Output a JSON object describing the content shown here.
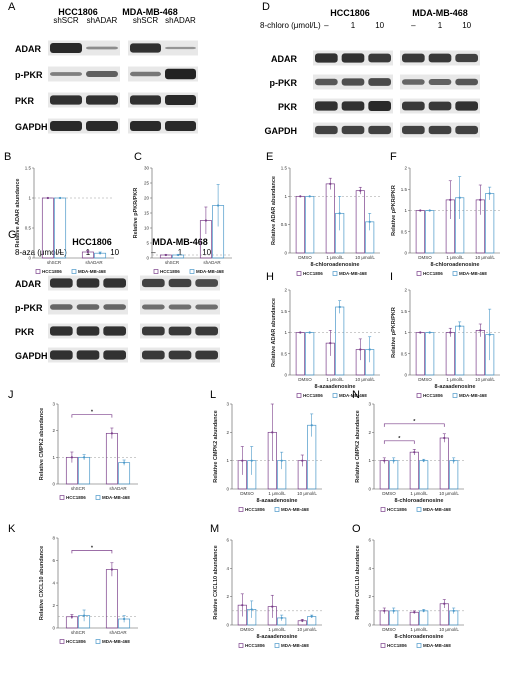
{
  "colors": {
    "hcc": "#7b3f8a",
    "mda": "#4a98c9",
    "ref": "#999999",
    "band": "#1a1a1a"
  },
  "blots": [
    {
      "letter": "A",
      "cell_lines": [
        "HCC1806",
        "MDA-MB-468"
      ],
      "lanes": [
        "shSCR",
        "shADAR",
        "shSCR",
        "shADAR"
      ],
      "rows": [
        {
          "name": "ADAR",
          "intensity": [
            0.9,
            0.25,
            0.85,
            0.2
          ]
        },
        {
          "name": "p-PKR",
          "intensity": [
            0.35,
            0.55,
            0.4,
            0.95
          ]
        },
        {
          "name": "PKR",
          "intensity": [
            0.85,
            0.85,
            0.85,
            0.9
          ]
        },
        {
          "name": "GAPDH",
          "intensity": [
            0.9,
            0.9,
            0.9,
            0.9
          ]
        }
      ]
    },
    {
      "letter": "D",
      "cell_lines": [
        "HCC1806",
        "MDA-MB-468"
      ],
      "dose_label": "8-chloro (μmol/L)",
      "lanes": [
        "–",
        "1",
        "10",
        "–",
        "1",
        "10"
      ],
      "rows": [
        {
          "name": "ADAR",
          "intensity": [
            0.85,
            0.85,
            0.8,
            0.8,
            0.8,
            0.75
          ]
        },
        {
          "name": "p-PKR",
          "intensity": [
            0.6,
            0.65,
            0.7,
            0.5,
            0.55,
            0.6
          ]
        },
        {
          "name": "PKR",
          "intensity": [
            0.85,
            0.85,
            0.9,
            0.8,
            0.8,
            0.85
          ]
        },
        {
          "name": "GAPDH",
          "intensity": [
            0.75,
            0.75,
            0.75,
            0.75,
            0.75,
            0.75
          ]
        }
      ]
    },
    {
      "letter": "G",
      "cell_lines": [
        "HCC1806",
        "MDA-MB-468"
      ],
      "dose_label": "8-aza (μmol/L)",
      "lanes": [
        "–",
        "1",
        "10",
        "–",
        "1",
        "10"
      ],
      "rows": [
        {
          "name": "ADAR",
          "intensity": [
            0.85,
            0.85,
            0.85,
            0.75,
            0.75,
            0.7
          ]
        },
        {
          "name": "p-PKR",
          "intensity": [
            0.5,
            0.5,
            0.5,
            0.45,
            0.45,
            0.45
          ]
        },
        {
          "name": "PKR",
          "intensity": [
            0.85,
            0.85,
            0.85,
            0.8,
            0.8,
            0.8
          ]
        },
        {
          "name": "GAPDH",
          "intensity": [
            0.85,
            0.85,
            0.85,
            0.8,
            0.8,
            0.8
          ]
        }
      ]
    }
  ],
  "legend": {
    "hcc": "HCC1806",
    "mda": "MDA-MB-468"
  },
  "chart_data": [
    {
      "letter": "B",
      "type": "bar",
      "ylabel": "Relative ADAR abundance",
      "xlabel": "",
      "categories": [
        "shSCR",
        "shADAR"
      ],
      "ylim": [
        0,
        1.5
      ],
      "yticks": [
        0,
        0.5,
        1.0,
        1.5
      ],
      "ref": 1,
      "series": [
        {
          "name": "HCC1806",
          "values": [
            1.0,
            0.1
          ],
          "err": [
            0,
            0.02
          ]
        },
        {
          "name": "MDA-MB-468",
          "values": [
            1.0,
            0.08
          ],
          "err": [
            0,
            0.02
          ]
        }
      ]
    },
    {
      "letter": "C",
      "type": "bar",
      "ylabel": "Relative pPKR/PKR",
      "xlabel": "",
      "categories": [
        "shSCR",
        "shADAR"
      ],
      "ylim": [
        0,
        30
      ],
      "yticks": [
        0,
        5,
        10,
        15,
        20,
        25,
        30
      ],
      "ref": 1,
      "series": [
        {
          "name": "HCC1806",
          "values": [
            1.0,
            12.5
          ],
          "err": [
            0.1,
            4.5
          ]
        },
        {
          "name": "MDA-MB-468",
          "values": [
            1.0,
            17.5
          ],
          "err": [
            0.1,
            7
          ]
        }
      ]
    },
    {
      "letter": "E",
      "type": "bar",
      "ylabel": "Relative ADAR abundance",
      "xlabel": "8-chloroadenosine",
      "categories": [
        "DMSO",
        "1 μmol/L",
        "10 μmol/L"
      ],
      "ylim": [
        0,
        1.5
      ],
      "yticks": [
        0,
        0.5,
        1.0,
        1.5
      ],
      "ref": 1,
      "series": [
        {
          "name": "HCC1806",
          "values": [
            1.0,
            1.22,
            1.1
          ],
          "err": [
            0,
            0.1,
            0.06
          ]
        },
        {
          "name": "MDA-MB-468",
          "values": [
            1.0,
            0.7,
            0.55
          ],
          "err": [
            0,
            0.3,
            0.15
          ]
        }
      ]
    },
    {
      "letter": "F",
      "type": "bar",
      "ylabel": "Relative pPKR/PKR",
      "xlabel": "8-chloroadenosine",
      "categories": [
        "DMSO",
        "1 μmol/L",
        "10 μmol/L"
      ],
      "ylim": [
        0,
        2.0
      ],
      "yticks": [
        0,
        0.5,
        1.0,
        1.5,
        2.0
      ],
      "ref": 1,
      "series": [
        {
          "name": "HCC1806",
          "values": [
            1.0,
            1.25,
            1.25
          ],
          "err": [
            0,
            0.45,
            0.35
          ]
        },
        {
          "name": "MDA-MB-468",
          "values": [
            1.0,
            1.3,
            1.4
          ],
          "err": [
            0,
            0.5,
            0.15
          ]
        }
      ]
    },
    {
      "letter": "H",
      "type": "bar",
      "ylabel": "Relative ADAR abundance",
      "xlabel": "8-azaadenosine",
      "categories": [
        "DMSO",
        "1 μmol/L",
        "10 μmol/L"
      ],
      "ylim": [
        0,
        2.0
      ],
      "yticks": [
        0,
        0.5,
        1.0,
        1.5,
        2.0
      ],
      "ref": 1,
      "series": [
        {
          "name": "HCC1806",
          "values": [
            1.0,
            0.75,
            0.6
          ],
          "err": [
            0,
            0.3,
            0.25
          ]
        },
        {
          "name": "MDA-MB-468",
          "values": [
            1.0,
            1.6,
            0.6
          ],
          "err": [
            0,
            0.15,
            0.3
          ]
        }
      ]
    },
    {
      "letter": "I",
      "type": "bar",
      "ylabel": "Relative pPKR/PKR",
      "xlabel": "8-azaadenosine",
      "categories": [
        "DMSO",
        "1 μmol/L",
        "10 μmol/L"
      ],
      "ylim": [
        0,
        2.0
      ],
      "yticks": [
        0,
        0.5,
        1.0,
        1.5,
        2.0
      ],
      "ref": 1,
      "series": [
        {
          "name": "HCC1806",
          "values": [
            1.0,
            1.0,
            1.05
          ],
          "err": [
            0,
            0.1,
            0.15
          ]
        },
        {
          "name": "MDA-MB-468",
          "values": [
            1.0,
            1.15,
            0.95
          ],
          "err": [
            0,
            0.1,
            0.6
          ]
        }
      ]
    },
    {
      "letter": "J",
      "type": "bar",
      "ylabel": "Relative CMPK2 abundance",
      "xlabel": "",
      "categories": [
        "shSCR",
        "shADAR"
      ],
      "ylim": [
        0,
        3
      ],
      "yticks": [
        0,
        1,
        2,
        3
      ],
      "ref": 1,
      "series": [
        {
          "name": "HCC1806",
          "values": [
            1.0,
            1.9
          ],
          "err": [
            0.2,
            0.2
          ]
        },
        {
          "name": "MDA-MB-468",
          "values": [
            1.0,
            0.8
          ],
          "err": [
            0.1,
            0.1
          ]
        }
      ],
      "sig": [
        {
          "from": [
            0,
            0
          ],
          "to": [
            1,
            0
          ],
          "label": "*",
          "y": 2.6
        }
      ]
    },
    {
      "letter": "L",
      "type": "bar",
      "ylabel": "Relative CMPK2 abundance",
      "xlabel": "8-azaadenosine",
      "categories": [
        "DMSO",
        "1 μmol/L",
        "10 μmol/L"
      ],
      "ylim": [
        0,
        3
      ],
      "yticks": [
        0,
        1,
        2,
        3
      ],
      "ref": 1,
      "series": [
        {
          "name": "HCC1806",
          "values": [
            1.0,
            2.0,
            1.0
          ],
          "err": [
            0.5,
            1.0,
            0.2
          ]
        },
        {
          "name": "MDA-MB-468",
          "values": [
            1.0,
            1.0,
            2.25
          ],
          "err": [
            0.5,
            0.3,
            0.4
          ]
        }
      ]
    },
    {
      "letter": "N",
      "type": "bar",
      "ylabel": "Relative CMPK2 abundance",
      "xlabel": "8-chloroadenosine",
      "categories": [
        "DMSO",
        "1 μmol/L",
        "10 μmol/L"
      ],
      "ylim": [
        0,
        3
      ],
      "yticks": [
        0,
        1,
        2,
        3
      ],
      "ref": 1,
      "series": [
        {
          "name": "HCC1806",
          "values": [
            1.0,
            1.3,
            1.8
          ],
          "err": [
            0.1,
            0.1,
            0.15
          ]
        },
        {
          "name": "MDA-MB-468",
          "values": [
            1.0,
            1.0,
            1.0
          ],
          "err": [
            0.1,
            0.05,
            0.1
          ]
        }
      ],
      "sig": [
        {
          "from": [
            0,
            0
          ],
          "to": [
            1,
            0
          ],
          "label": "*",
          "y": 1.7
        },
        {
          "from": [
            0,
            0
          ],
          "to": [
            2,
            0
          ],
          "label": "*",
          "y": 2.3
        }
      ]
    },
    {
      "letter": "K",
      "type": "bar",
      "ylabel": "Relative CXCL10 abundance",
      "xlabel": "",
      "categories": [
        "shSCR",
        "shADAR"
      ],
      "ylim": [
        0,
        8
      ],
      "yticks": [
        0,
        2,
        4,
        6,
        8
      ],
      "ref": 1,
      "series": [
        {
          "name": "HCC1806",
          "values": [
            1.0,
            5.2
          ],
          "err": [
            0.2,
            0.6
          ]
        },
        {
          "name": "MDA-MB-468",
          "values": [
            1.1,
            0.8
          ],
          "err": [
            0.5,
            0.3
          ]
        }
      ],
      "sig": [
        {
          "from": [
            0,
            0
          ],
          "to": [
            1,
            0
          ],
          "label": "*",
          "y": 6.9
        }
      ]
    },
    {
      "letter": "M",
      "type": "bar",
      "ylabel": "Relative CXCL10 abundance",
      "xlabel": "8-azaadenosine",
      "categories": [
        "DMSO",
        "1 μmol/L",
        "10 μmol/L"
      ],
      "ylim": [
        0,
        6
      ],
      "yticks": [
        0,
        2,
        4,
        6
      ],
      "ref": 1,
      "series": [
        {
          "name": "HCC1806",
          "values": [
            1.4,
            1.3,
            0.3
          ],
          "err": [
            0.8,
            0.8,
            0.1
          ]
        },
        {
          "name": "MDA-MB-468",
          "values": [
            1.1,
            0.5,
            0.6
          ],
          "err": [
            0.6,
            0.2,
            0.1
          ]
        }
      ]
    },
    {
      "letter": "O",
      "type": "bar",
      "ylabel": "Relative CXCL10 abundance",
      "xlabel": "8-chloroadenosine",
      "categories": [
        "DMSO",
        "1 μmol/L",
        "10 μmol/L"
      ],
      "ylim": [
        0,
        6
      ],
      "yticks": [
        0,
        2,
        4,
        6
      ],
      "ref": 1,
      "series": [
        {
          "name": "HCC1806",
          "values": [
            1.0,
            0.9,
            1.5
          ],
          "err": [
            0.2,
            0.1,
            0.3
          ]
        },
        {
          "name": "MDA-MB-468",
          "values": [
            1.0,
            1.0,
            1.0
          ],
          "err": [
            0.2,
            0.1,
            0.2
          ]
        }
      ]
    }
  ]
}
